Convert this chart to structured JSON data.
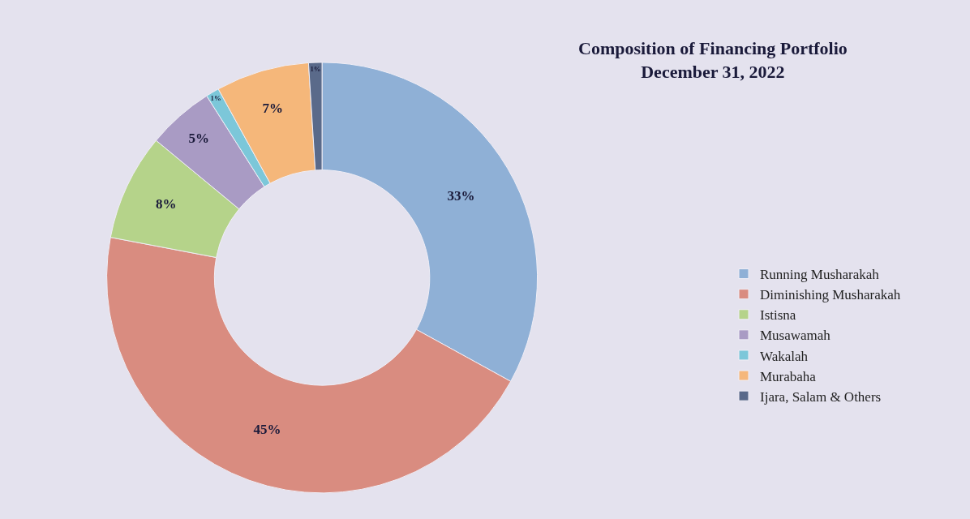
{
  "chart_data": {
    "type": "donut",
    "title": "Composition of Financing Portfolio",
    "subtitle": "December 31, 2022",
    "categories": [
      "Running Musharakah",
      "Diminishing Musharakah",
      "Istisna",
      "Musawamah",
      "Wakalah",
      "Murabaha",
      "Ijara, Salam & Others"
    ],
    "values": [
      33,
      45,
      8,
      5,
      1,
      7,
      1
    ],
    "value_labels": [
      "33%",
      "45%",
      "8%",
      "5%",
      "1%",
      "7%",
      "1%"
    ],
    "colors": [
      "#8fb0d6",
      "#d98c80",
      "#b5d38a",
      "#a99bc4",
      "#7cc7d9",
      "#f5b77a",
      "#5a6a8a"
    ],
    "legend": "right"
  }
}
